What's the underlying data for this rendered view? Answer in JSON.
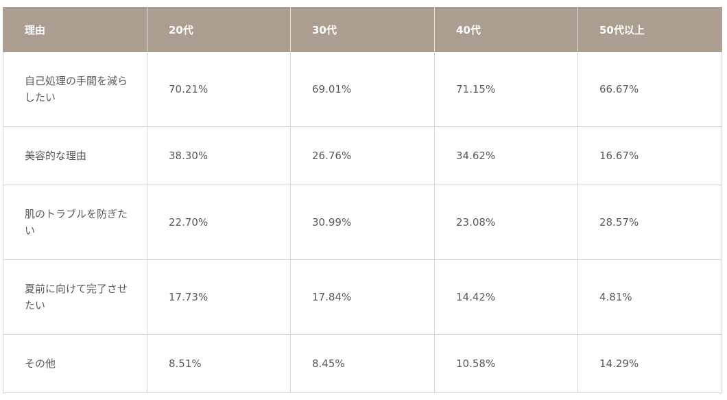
{
  "table": {
    "headers": [
      "理由",
      "20代",
      "30代",
      "40代",
      "50代以上"
    ],
    "rows": [
      {
        "reason": "自己処理の手間を減らしたい",
        "values": [
          "70.21%",
          "69.01%",
          "71.15%",
          "66.67%"
        ]
      },
      {
        "reason": "美容的な理由",
        "values": [
          "38.30%",
          "26.76%",
          "34.62%",
          "16.67%"
        ]
      },
      {
        "reason": "肌のトラブルを防ぎたい",
        "values": [
          "22.70%",
          "30.99%",
          "23.08%",
          "28.57%"
        ]
      },
      {
        "reason": "夏前に向けて完了させたい",
        "values": [
          "17.73%",
          "17.84%",
          "14.42%",
          "4.81%"
        ]
      },
      {
        "reason": "その他",
        "values": [
          "8.51%",
          "8.45%",
          "10.58%",
          "14.29%"
        ]
      }
    ]
  },
  "colors": {
    "header_bg": "#ab9d90",
    "header_text": "#ffffff",
    "body_text": "#595959",
    "border": "#d6d6d6"
  }
}
